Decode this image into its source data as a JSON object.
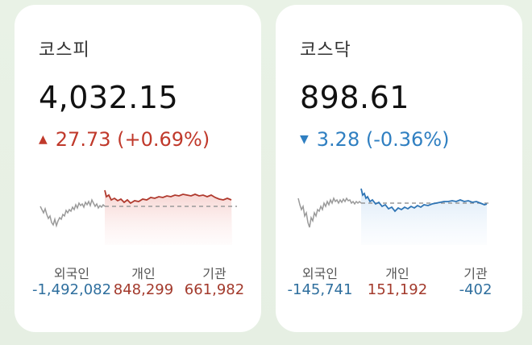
{
  "colors": {
    "up": "#c0392b",
    "down": "#2f7fc1",
    "gray_line": "#9a9a9a"
  },
  "cards": [
    {
      "name": "코스피",
      "price": "4,032.15",
      "direction": "up",
      "arrow_icon": "triangle-up-icon",
      "change": "27.73 (+0.69%)",
      "investors": [
        {
          "label": "외국인",
          "value": "-1,492,082",
          "sign": "neg"
        },
        {
          "label": "개인",
          "value": "848,299",
          "sign": "pos"
        },
        {
          "label": "기관",
          "value": "661,982",
          "sign": "pos"
        }
      ]
    },
    {
      "name": "코스닥",
      "price": "898.61",
      "direction": "down",
      "arrow_icon": "triangle-down-icon",
      "change": "3.28 (-0.36%)",
      "investors": [
        {
          "label": "외국인",
          "value": "-145,741",
          "sign": "neg"
        },
        {
          "label": "개인",
          "value": "151,192",
          "sign": "pos"
        },
        {
          "label": "기관",
          "value": "-402",
          "sign": "neg"
        }
      ]
    }
  ]
}
